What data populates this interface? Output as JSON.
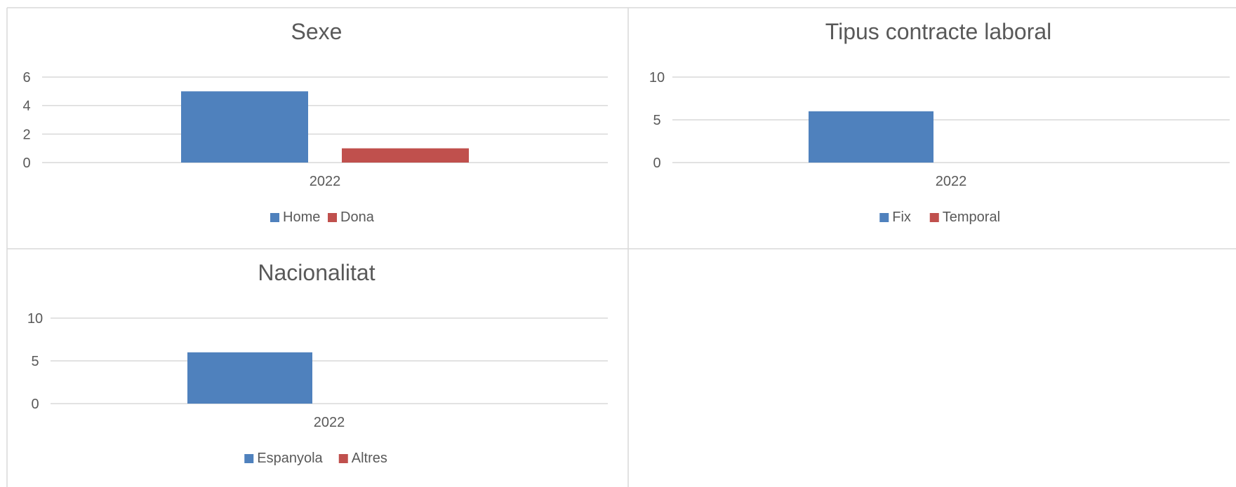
{
  "colors": {
    "series_primary": "#4f81bd",
    "series_secondary": "#c0504d",
    "gridline": "#d9d9d9",
    "panel_border": "#d9d9d9",
    "text": "#595959"
  },
  "chart_data": [
    {
      "type": "bar",
      "title": "Sexe",
      "categories": [
        "2022"
      ],
      "series": [
        {
          "name": "Home",
          "values": [
            5
          ],
          "color": "#4f81bd"
        },
        {
          "name": "Dona",
          "values": [
            1
          ],
          "color": "#c0504d"
        }
      ],
      "ylim": [
        0,
        6
      ],
      "yticks": [
        0,
        2,
        4,
        6
      ],
      "xlabel": "",
      "ylabel": "",
      "grid": true,
      "legend": "bottom"
    },
    {
      "type": "bar",
      "title": "Tipus contracte laboral",
      "categories": [
        "2022"
      ],
      "series": [
        {
          "name": "Fix",
          "values": [
            6
          ],
          "color": "#4f81bd"
        },
        {
          "name": "Temporal",
          "values": [
            0
          ],
          "color": "#c0504d"
        }
      ],
      "ylim": [
        0,
        10
      ],
      "yticks": [
        0,
        5,
        10
      ],
      "xlabel": "",
      "ylabel": "",
      "grid": true,
      "legend": "bottom"
    },
    {
      "type": "bar",
      "title": "Nacionalitat",
      "categories": [
        "2022"
      ],
      "series": [
        {
          "name": "Espanyola",
          "values": [
            6
          ],
          "color": "#4f81bd"
        },
        {
          "name": "Altres",
          "values": [
            0
          ],
          "color": "#c0504d"
        }
      ],
      "ylim": [
        0,
        10
      ],
      "yticks": [
        0,
        5,
        10
      ],
      "xlabel": "",
      "ylabel": "",
      "grid": true,
      "legend": "bottom"
    }
  ]
}
